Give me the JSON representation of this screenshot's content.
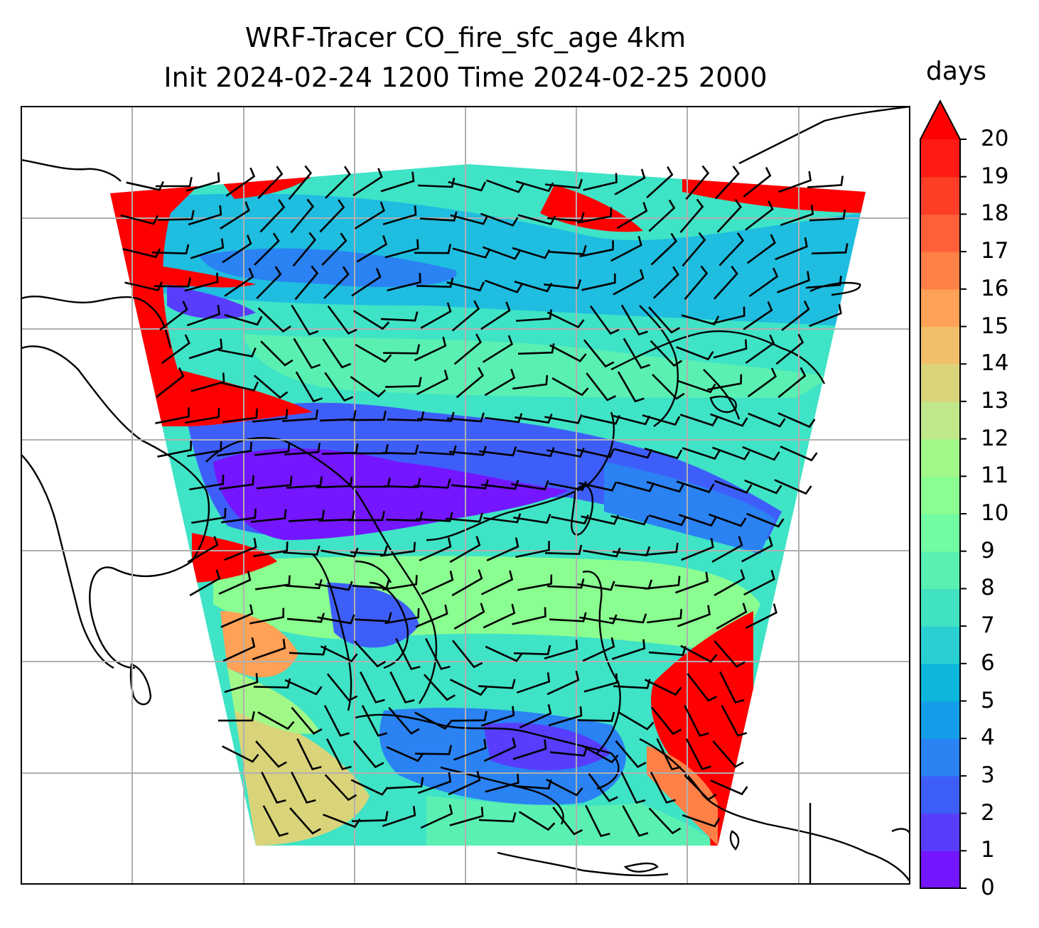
{
  "title": {
    "line1": "WRF-Tracer CO_fire_sfc_age 4km",
    "line2": "Init 2024-02-24 1200 Time 2024-02-25 2000"
  },
  "map": {
    "variable": "CO_fire_sfc_age",
    "units": "days",
    "extend": "max",
    "gridlines": true,
    "overlay": "wind barbs",
    "coastlines": true
  },
  "colorbar": {
    "label": "days",
    "ticks": [
      "0",
      "1",
      "2",
      "3",
      "4",
      "5",
      "6",
      "7",
      "8",
      "9",
      "10",
      "11",
      "12",
      "13",
      "14",
      "15",
      "16",
      "17",
      "18",
      "19",
      "20"
    ],
    "colors": [
      "#7416ff",
      "#583dfd",
      "#3e5efa",
      "#2a82f3",
      "#149ee9",
      "#0db7dc",
      "#29cfd1",
      "#41e2c1",
      "#5af0b2",
      "#72fba3",
      "#8afe90",
      "#a2f887",
      "#c0e88a",
      "#d9d47a",
      "#f1bf6a",
      "#ffa156",
      "#ff8047",
      "#ff603a",
      "#ff3e28",
      "#ff1a13"
    ],
    "over_color": "#ff0000"
  }
}
